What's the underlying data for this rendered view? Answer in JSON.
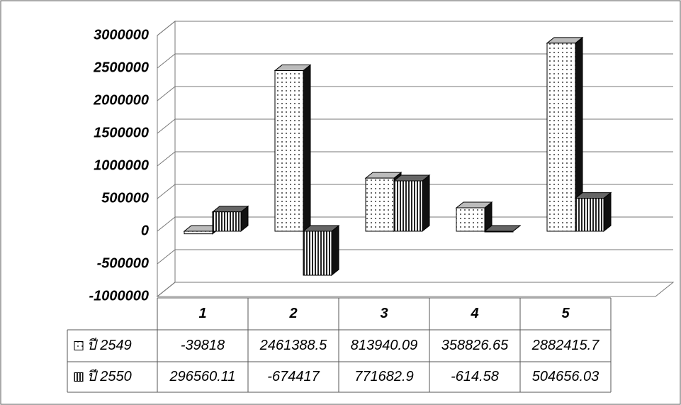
{
  "chart_data": {
    "type": "bar",
    "categories": [
      "1",
      "2",
      "3",
      "4",
      "5"
    ],
    "series": [
      {
        "name": "ปี 2549",
        "color": "#ffffff",
        "values": [
          -39818,
          2461388.5,
          813940.09,
          358826.65,
          2882415.7
        ]
      },
      {
        "name": "ปี 2550",
        "color": "#333333",
        "values": [
          296560.11,
          -674417,
          771682.9,
          -614.58,
          504656.03
        ]
      }
    ],
    "ylim": [
      -1000000,
      3000000
    ],
    "yticks": [
      -1000000,
      -500000,
      0,
      500000,
      1000000,
      1500000,
      2000000,
      2500000,
      3000000
    ],
    "grid": true
  }
}
